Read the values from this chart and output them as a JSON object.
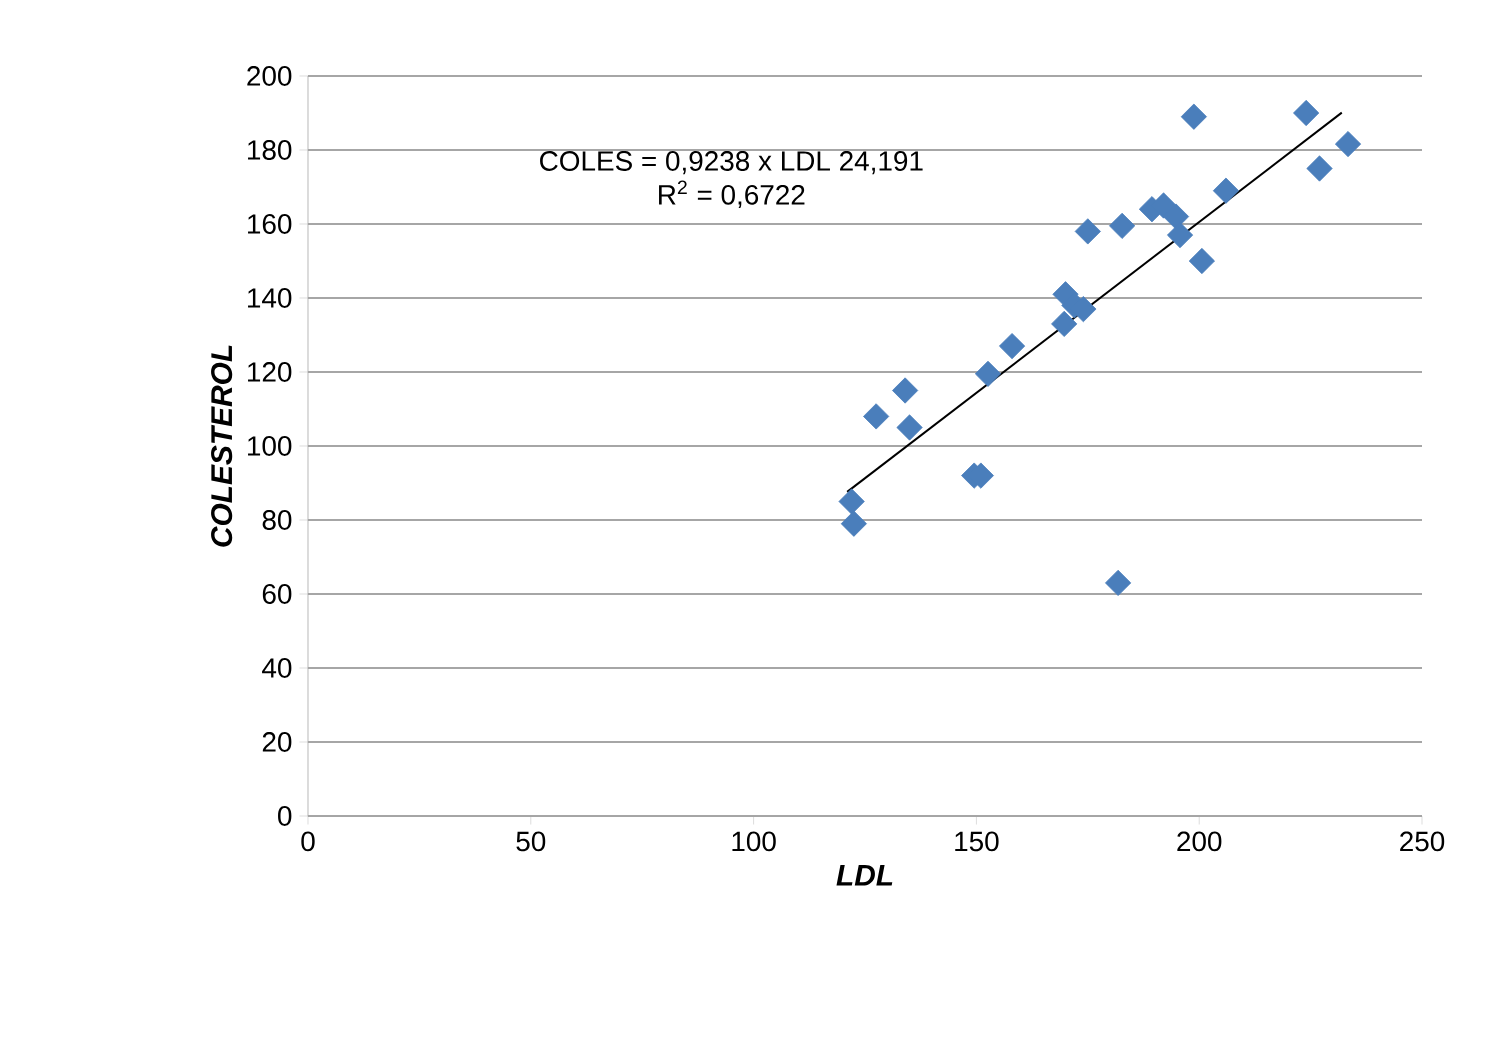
{
  "chart_data": {
    "type": "scatter",
    "xlabel": "LDL",
    "ylabel": "COLESTEROL",
    "annotations": [
      "COLES = 0,9238 x LDL  24,191",
      "R$^{2}$ = 0,6722"
    ],
    "xlim": [
      0,
      250
    ],
    "xticks": [
      0,
      50,
      100,
      150,
      200,
      250
    ],
    "ylim": [
      0,
      200
    ],
    "yticks": [
      0,
      20,
      40,
      60,
      80,
      100,
      120,
      140,
      160,
      180,
      200
    ],
    "grid": "y",
    "marker": "diamond",
    "series": [
      {
        "color": "#4a7ebb",
        "x": [
          122,
          122.5,
          127.5,
          134,
          135,
          149.5,
          151,
          152.6,
          158,
          170,
          169.7,
          172,
          174,
          175,
          182.7,
          181.8,
          189.4,
          192,
          194.8,
          195.7,
          200.6,
          206,
          198.8,
          224,
          227,
          233.4
        ],
        "values": [
          85,
          79,
          108,
          115,
          105,
          92,
          92,
          119.5,
          127,
          141,
          133,
          138,
          137,
          158,
          159.5,
          63,
          164,
          165,
          162,
          157,
          150,
          169,
          189,
          190,
          175,
          181.6
        ]
      },
      {
        "type": "line",
        "color": "#000000",
        "marker": "none",
        "x": [
          121,
          232
        ],
        "values": [
          87.6,
          190.1
        ]
      }
    ]
  }
}
